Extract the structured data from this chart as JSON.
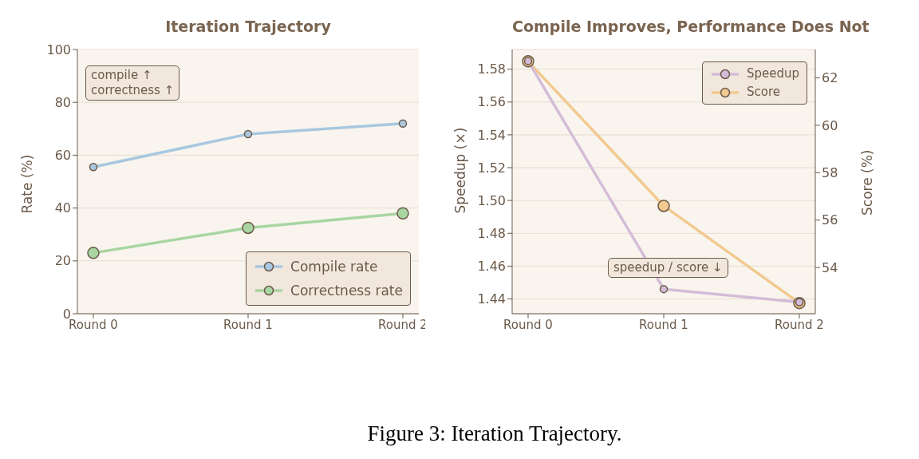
{
  "chart_data": [
    {
      "type": "line",
      "title": "Iteration Trajectory",
      "ylabel": "Rate (%)",
      "categories": [
        "Round 0",
        "Round 1",
        "Round 2"
      ],
      "series": [
        {
          "name": "Compile rate",
          "color": "#a9c8e0",
          "values": [
            55.5,
            68,
            72
          ]
        },
        {
          "name": "Correctness rate",
          "color": "#a8d5a2",
          "values": [
            23,
            32.5,
            38
          ]
        }
      ],
      "ylim": [
        0,
        100
      ],
      "yticks": [
        0,
        20,
        40,
        60,
        80,
        100
      ],
      "grid": "y",
      "legend": "bottom right",
      "marker": "circle",
      "annotations": [
        "compile ↑\ncorrectness ↑"
      ]
    },
    {
      "type": "line",
      "title": "Compile Improves, Performance Does Not",
      "ylabel": "Speedup (×)",
      "y2label": "Score (%)",
      "categories": [
        "Round 0",
        "Round 1",
        "Round 2"
      ],
      "series": [
        {
          "name": "Speedup",
          "color": "#d4bcd8",
          "values": [
            1.585,
            1.446,
            1.438
          ]
        },
        {
          "name": "Score",
          "color": "#f2c98f",
          "values": [
            62.7,
            56.6,
            52.5
          ],
          "axis": "y2"
        }
      ],
      "ylim": [
        1.431,
        1.592
      ],
      "yticks": [
        {
          "value": 1.44,
          "label": "1.44"
        },
        {
          "value": 1.46,
          "label": "1.46"
        },
        {
          "value": 1.48,
          "label": "1.48"
        },
        {
          "value": 1.5,
          "label": "1.50"
        },
        {
          "value": 1.52,
          "label": "1.52"
        },
        {
          "value": 1.54,
          "label": "1.54"
        },
        {
          "value": 1.56,
          "label": "1.56"
        },
        {
          "value": 1.58,
          "label": "1.58"
        }
      ],
      "y2lim": [
        52.05,
        63.2
      ],
      "y2ticks": [
        54,
        56,
        58,
        60,
        62
      ],
      "grid": "y",
      "legend": "top right",
      "marker": "circle",
      "annotations": [
        "speedup / score ↓",
        "Figure 3: Iteration Trajectory."
      ]
    }
  ]
}
